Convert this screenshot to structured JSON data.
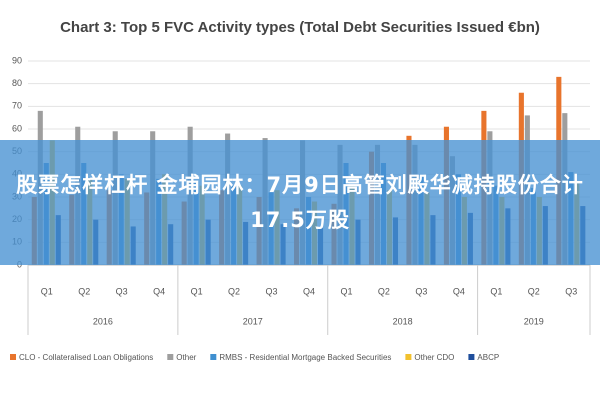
{
  "chart_data": {
    "type": "bar",
    "title": "Chart 3: Top 5 FVC Activity types (Total Debt Securities Issued €bn)",
    "categories": [
      "Q1",
      "Q2",
      "Q3",
      "Q4",
      "Q1",
      "Q2",
      "Q3",
      "Q4",
      "Q1",
      "Q2",
      "Q3",
      "Q4",
      "Q1",
      "Q2",
      "Q3"
    ],
    "category_groups": [
      "2016",
      "2017",
      "2018",
      "2019"
    ],
    "group_sizes": [
      4,
      4,
      4,
      3
    ],
    "series": [
      {
        "name": "CLO - Collateralised Loan Obligations",
        "color": "#e8742c",
        "values": [
          30,
          31,
          33,
          32,
          28,
          33,
          30,
          25,
          27,
          50,
          57,
          61,
          68,
          76,
          83
        ]
      },
      {
        "name": "Other",
        "color": "#9e9e9e",
        "values": [
          68,
          61,
          59,
          59,
          61,
          58,
          56,
          55,
          53,
          53,
          53,
          48,
          59,
          66,
          67
        ]
      },
      {
        "name": "RMBS - Residential Mortgage Backed Securities",
        "color": "#3f8fd0",
        "values": [
          45,
          45,
          40,
          38,
          37,
          35,
          32,
          30,
          45,
          45,
          40,
          40,
          35,
          34,
          41
        ]
      },
      {
        "name": "Other CDO",
        "color": "#f2c12e",
        "values": [
          55,
          38,
          38,
          40,
          35,
          35,
          33,
          28,
          35,
          33,
          32,
          30,
          30,
          30,
          36
        ]
      },
      {
        "name": "ABCP",
        "color": "#1f4e9c",
        "values": [
          22,
          20,
          17,
          18,
          20,
          19,
          18,
          17,
          20,
          21,
          22,
          23,
          25,
          26,
          26
        ]
      }
    ],
    "ylim": [
      0,
      90
    ],
    "yticks": [
      0,
      10,
      20,
      30,
      40,
      50,
      60,
      70,
      80,
      90
    ],
    "grid": true
  },
  "overlay": {
    "headline": "股票怎样杠杆 金埔园林：7月9日高管刘殿华减持股份合计17.5万股"
  }
}
